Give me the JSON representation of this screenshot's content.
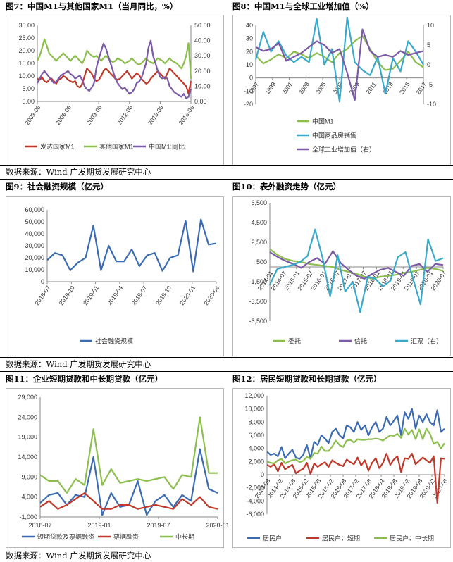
{
  "source_note": "数据来源：Wind 广发期货发展研究中心",
  "colors": {
    "red": "#c0392b",
    "green": "#8cbf4e",
    "purple": "#7b5aa6",
    "teal": "#3aa9c9",
    "blue": "#3b6cb3"
  },
  "panels": [
    {
      "title": "图7：中国M1与其他国家M1（当月同比，%）"
    },
    {
      "title": "图8：中国M1与全球工业增加值（%）"
    },
    {
      "title": "图9：社会融资规模（亿元）"
    },
    {
      "title": "图10：表外融资走势（亿元）"
    },
    {
      "title": "图11：企业短期贷款和中长期贷款（亿元）"
    },
    {
      "title": "图12：居民短期贷款和长期贷款（亿元）"
    }
  ],
  "chart_data": [
    {
      "type": "line",
      "title": "图7：中国M1与其他国家M1（当月同比，%）",
      "x_ticks": [
        "2003-06",
        "2006-06",
        "2009-06",
        "2012-06",
        "2015-06",
        "2018-06"
      ],
      "y_left": {
        "ticks": [
          "0.00",
          "5.00",
          "10.00",
          "15.00",
          "20.00",
          "25.00",
          "30.00"
        ],
        "lim": [
          0,
          30
        ]
      },
      "y_right": {
        "ticks": [
          "0.00",
          "10.00",
          "20.00",
          "30.00",
          "40.00",
          "50.00"
        ],
        "lim": [
          0,
          50
        ]
      },
      "series": [
        {
          "name": "发达国家M1",
          "axis": "left",
          "color": "red",
          "values": [
            9,
            8.5,
            9.5,
            8,
            7.5,
            8.5,
            9,
            8,
            7,
            8.5,
            9,
            10,
            9.5,
            8.5,
            8,
            7.5,
            8,
            6,
            5.5,
            7,
            10,
            13,
            12,
            11,
            9,
            8,
            8.5,
            10,
            12,
            13,
            12,
            11,
            10,
            9,
            8.5,
            9,
            10,
            11,
            12,
            10.5,
            9,
            10,
            11,
            10.5,
            9,
            8,
            7,
            7.5,
            9,
            10,
            11,
            12,
            11,
            10,
            9,
            11,
            13,
            12,
            11,
            10,
            9,
            8,
            7,
            6,
            3,
            8
          ]
        },
        {
          "name": "其他国家M1",
          "axis": "left",
          "color": "green",
          "values": [
            16,
            18,
            21,
            24.5,
            22,
            19,
            18,
            17,
            16,
            17,
            18,
            19,
            18,
            17,
            16,
            17,
            18,
            17,
            16,
            15,
            17,
            20,
            19,
            18,
            17.5,
            18,
            17,
            16,
            17,
            18,
            17,
            16,
            15.5,
            16,
            17,
            16.5,
            16,
            15,
            15.5,
            16,
            17,
            16,
            15,
            14.5,
            15,
            16,
            17,
            16,
            15.5,
            15,
            16,
            17,
            16.5,
            16,
            15,
            16,
            17,
            16,
            15.5,
            15,
            14,
            13,
            15,
            18,
            23,
            9
          ]
        },
        {
          "name": "中国M1:同比",
          "axis": "right",
          "color": "purple",
          "values": [
            12,
            15,
            18,
            20,
            18,
            16,
            14,
            12,
            13,
            15,
            17,
            18,
            19,
            20,
            18,
            17,
            15,
            16,
            17,
            14,
            10,
            8,
            7,
            9,
            12,
            22,
            28,
            33,
            38,
            35,
            30,
            25,
            20,
            15,
            12,
            10,
            8,
            9,
            7,
            5,
            6,
            8,
            12,
            13,
            15,
            20,
            25,
            35,
            40,
            30,
            25,
            20,
            16,
            15,
            16,
            15,
            10,
            8,
            6,
            5,
            4,
            3,
            5,
            2,
            3,
            8
          ]
        }
      ]
    },
    {
      "type": "line",
      "title": "图8：中国M1与全球工业增加值（%）",
      "x_ticks": [
        "1997",
        "1999",
        "2001",
        "2003",
        "2005",
        "2007",
        "2009",
        "2011",
        "2013",
        "2015",
        "2017"
      ],
      "y_left": {
        "ticks": [
          "-20",
          "-10",
          "0",
          "10",
          "20",
          "30",
          "40"
        ],
        "lim": [
          -20,
          40
        ]
      },
      "y_right": {
        "ticks": [
          "-10",
          "-5",
          "0",
          "5",
          "10"
        ],
        "lim": [
          -10,
          10
        ]
      },
      "series": [
        {
          "name": "中国M1",
          "axis": "left",
          "color": "green",
          "values": [
            17,
            11,
            14,
            18,
            15,
            20,
            18,
            15,
            19,
            16,
            12,
            19,
            22,
            28,
            32,
            22,
            12,
            6,
            7,
            13,
            20,
            12,
            8
          ]
        },
        {
          "name": "中国商品房销售",
          "axis": "left",
          "color": "teal",
          "values": [
            14,
            35,
            20,
            28,
            17,
            12,
            16,
            12,
            45,
            10,
            22,
            -18,
            46,
            12,
            6,
            2,
            16,
            -12,
            15,
            5,
            28,
            20,
            10
          ]
        },
        {
          "name": "全球工业增加值（右）",
          "axis": "right",
          "color": "purple",
          "values": [
            4.5,
            3.5,
            4,
            5.5,
            1,
            2,
            3,
            4.5,
            6,
            5,
            3,
            4,
            -2,
            -9,
            9,
            3.5,
            2,
            2.5,
            2,
            3.5,
            2.5,
            3,
            3.5
          ]
        }
      ]
    },
    {
      "type": "line",
      "title": "图9：社会融资规模（亿元）",
      "x_ticks": [
        "2018-07",
        "2018-10",
        "2019-01",
        "2019-04",
        "2019-07",
        "2019-10",
        "2020-01",
        "2020-04"
      ],
      "y": {
        "ticks": [
          "0",
          "10,000",
          "20,000",
          "30,000",
          "40,000",
          "50,000",
          "60,000"
        ],
        "lim": [
          0,
          60000
        ]
      },
      "series": [
        {
          "name": "社会融资规模",
          "color": "blue",
          "values": [
            18000,
            24000,
            22000,
            9500,
            16000,
            20000,
            47000,
            9500,
            30000,
            17000,
            17000,
            27000,
            13000,
            22000,
            24000,
            9000,
            20000,
            22000,
            51000,
            8500,
            52000,
            31000,
            32000
          ]
        }
      ]
    },
    {
      "type": "line",
      "title": "图10：表外融资走势（亿元）",
      "x_ticks": [
        "2014-01",
        "2014-07",
        "2015-01",
        "2015-07",
        "2016-01",
        "2016-07",
        "2017-01",
        "2017-07",
        "2018-01",
        "2018-07",
        "2019-01",
        "2019-07",
        "2020-01",
        "2020-07"
      ],
      "y": {
        "ticks": [
          "-5,500",
          "-3,500",
          "-1,500",
          "500",
          "2,500",
          "4,500",
          "6,500"
        ],
        "lim": [
          -5500,
          6500
        ]
      },
      "series": [
        {
          "name": "委托",
          "color": "green",
          "values": [
            1800,
            1200,
            800,
            600,
            500,
            300,
            200,
            100,
            0,
            -300,
            -500,
            -700,
            -1000,
            -1200,
            -1000,
            -900,
            -800,
            -600,
            -500,
            -300,
            -100,
            -200,
            -400
          ]
        },
        {
          "name": "信托",
          "color": "purple",
          "values": [
            1500,
            1000,
            600,
            300,
            -100,
            500,
            900,
            300,
            1600,
            400,
            -300,
            -900,
            -1200,
            -700,
            -300,
            -100,
            -500,
            -900,
            100,
            300,
            -500,
            300,
            200
          ]
        },
        {
          "name": "汇票（右）",
          "color": "teal",
          "values": [
            -1800,
            -200,
            0,
            200,
            500,
            1100,
            3800,
            900,
            -3000,
            1200,
            -2500,
            -1500,
            -4600,
            -1000,
            -1200,
            -2000,
            -1400,
            1000,
            1500,
            -1200,
            -3800,
            2800,
            600,
            900
          ]
        }
      ]
    },
    {
      "type": "line",
      "title": "图11：企业短期贷款和中长期贷款（亿元）",
      "x_ticks": [
        "2018-07",
        "2019-01",
        "2019-07",
        "2020-01"
      ],
      "y": {
        "ticks": [
          "-1,000",
          "4,000",
          "9,000",
          "14,000",
          "19,000",
          "24,000",
          "29,000"
        ],
        "lim": [
          -1000,
          29000
        ]
      },
      "series": [
        {
          "name": "短期贷款及票据融资",
          "color": "blue",
          "values": [
            2500,
            4500,
            5000,
            2000,
            4500,
            4000,
            14000,
            -500,
            5000,
            1500,
            2000,
            8000,
            -500,
            3000,
            4500,
            1500,
            4500,
            3000,
            16000,
            6000,
            5000
          ]
        },
        {
          "name": "票据融资",
          "color": "red",
          "values": [
            1500,
            3000,
            1000,
            2000,
            3500,
            5000,
            3000,
            1000,
            1000,
            2000,
            2000,
            1000,
            1500,
            2000,
            1500,
            1000,
            3500,
            2000,
            4000,
            1500,
            1000
          ]
        },
        {
          "name": "中长期",
          "color": "green",
          "values": [
            9500,
            8000,
            8000,
            5000,
            8500,
            7000,
            21000,
            7000,
            11000,
            7500,
            8000,
            8500,
            8000,
            8500,
            9000,
            6000,
            9500,
            9000,
            24000,
            10000,
            10000
          ]
        }
      ]
    },
    {
      "type": "line",
      "title": "图12：居民短期贷款和长期贷款（亿元）",
      "x_ticks": [
        "2013-08",
        "2014-02",
        "2014-08",
        "2015-02",
        "2015-08",
        "2016-02",
        "2016-08",
        "2017-02",
        "2017-08",
        "2018-02",
        "2018-08",
        "2019-02",
        "2019-08",
        "2020-02",
        "2020-08"
      ],
      "y": {
        "ticks": [
          "-6,000",
          "-4,000",
          "-2,000",
          "0",
          "2,000",
          "4,000",
          "6,000",
          "8,000",
          "10,000",
          "12,000"
        ],
        "lim": [
          -6000,
          12000
        ]
      },
      "series": [
        {
          "name": "居民户",
          "color": "blue",
          "values": [
            3500,
            3000,
            3200,
            2800,
            4200,
            2500,
            3200,
            3800,
            2600,
            2400,
            3000,
            4500,
            2500,
            5000,
            4500,
            6000,
            5500,
            4800,
            6500,
            7000,
            6000,
            5500,
            7500,
            7200,
            6500,
            8000,
            6800,
            7500,
            6000,
            7200,
            8000,
            6500,
            7000,
            8800,
            7500,
            8200,
            9000,
            6000,
            9500,
            8500,
            10000,
            7000,
            9000,
            8000,
            9200,
            8000,
            7500,
            9800,
            6500,
            7000
          ]
        },
        {
          "name": "居民户：短期",
          "color": "red",
          "values": [
            1500,
            1200,
            1600,
            500,
            1800,
            800,
            1200,
            1500,
            200,
            600,
            900,
            1800,
            100,
            1700,
            1200,
            1600,
            1900,
            1200,
            2200,
            1800,
            1500,
            1300,
            2300,
            1900,
            1600,
            2600,
            1400,
            2200,
            600,
            1800,
            2500,
            1000,
            1800,
            3200,
            1500,
            2300,
            2800,
            400,
            2500,
            2400,
            3200,
            1600,
            2100,
            2600,
            2200,
            1800,
            2800,
            -4300,
            2500,
            2400
          ]
        },
        {
          "name": "居民户：中长期",
          "color": "green",
          "values": [
            2000,
            1800,
            1700,
            2200,
            2400,
            1700,
            2000,
            2200,
            2300,
            1900,
            2100,
            2700,
            2400,
            3300,
            3200,
            4300,
            3600,
            3600,
            4300,
            5200,
            4500,
            4200,
            5200,
            5300,
            4900,
            5400,
            5300,
            5300,
            5400,
            5400,
            5500,
            5400,
            5200,
            5600,
            6000,
            5900,
            6200,
            5600,
            7000,
            6100,
            6800,
            5400,
            6900,
            5400,
            7000,
            6200,
            4700,
            5000,
            4000,
            4800
          ]
        }
      ]
    }
  ]
}
